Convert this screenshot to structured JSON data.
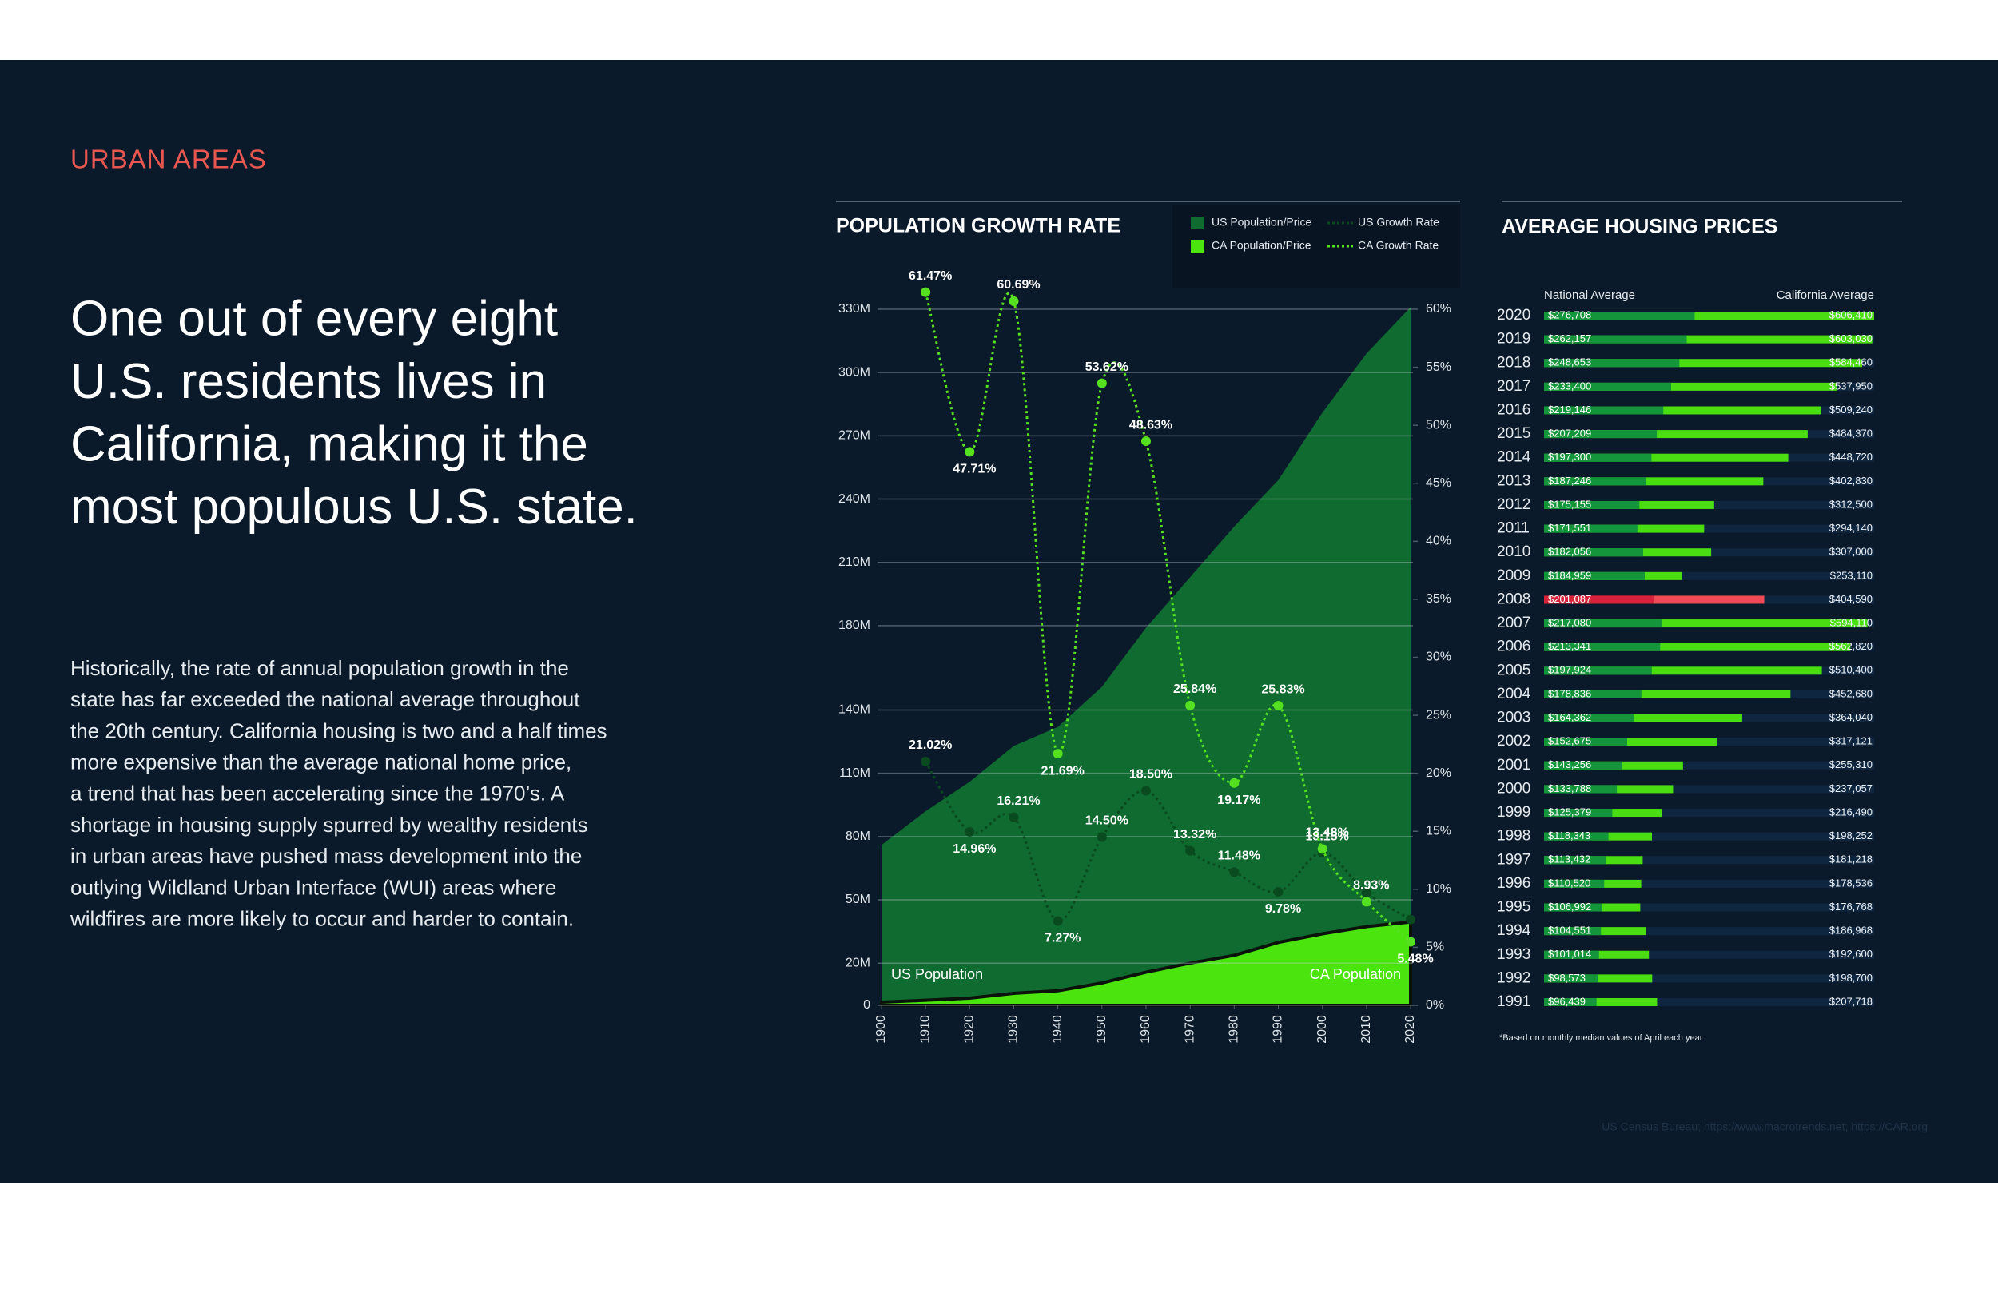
{
  "section_label": "URBAN AREAS",
  "headline": [
    "One out of every eight",
    "U.S. residents lives in",
    "California, making it the",
    "most populous U.S. state."
  ],
  "body": [
    "Historically, the rate of annual population growth in the",
    "state has far exceeded the national average throughout",
    "the 20th century. California housing is two and a half times",
    "more expensive than the average national home price,",
    "a trend that has been accelerating since the 1970’s. A",
    "shortage in housing supply spurred by wealthy residents",
    "in urban areas have pushed mass development into the",
    "outlying Wildland Urban Interface (WUI) areas where",
    "wildfires are more likely to occur and harder to contain."
  ],
  "source": "US Census Bureau; https://www.macrotrends.net; https://CAR.org",
  "chart_data": [
    {
      "type": "line",
      "title": "POPULATION GROWTH RATE",
      "x": [
        1900,
        1910,
        1920,
        1930,
        1940,
        1950,
        1960,
        1970,
        1980,
        1990,
        2000,
        2010,
        2020
      ],
      "xlim": [
        1900,
        2020
      ],
      "xticks": [
        1900,
        1910,
        1920,
        1930,
        1940,
        1950,
        1960,
        1970,
        1980,
        1990,
        2000,
        2010,
        2020
      ],
      "ylim": [
        0,
        330
      ],
      "yticks": [
        0,
        {
          "value": 20,
          "label": "20M"
        },
        {
          "value": 50,
          "label": "50M"
        },
        {
          "value": 80,
          "label": "80M"
        },
        {
          "value": 110,
          "label": "110M"
        },
        {
          "value": 140,
          "label": "140M"
        },
        {
          "value": 180,
          "label": "180M"
        },
        {
          "value": 210,
          "label": "210M"
        },
        {
          "value": 240,
          "label": "240M"
        },
        {
          "value": 270,
          "label": "270M"
        },
        {
          "value": 300,
          "label": "300M"
        },
        {
          "value": 330,
          "label": "330M"
        }
      ],
      "y2lim": [
        0,
        60
      ],
      "y2ticks": [
        {
          "value": 0,
          "label": "0%"
        },
        {
          "value": 5,
          "label": "5%"
        },
        {
          "value": 10,
          "label": "10%"
        },
        {
          "value": 15,
          "label": "15%"
        },
        {
          "value": 20,
          "label": "20%"
        },
        {
          "value": 25,
          "label": "25%"
        },
        {
          "value": 30,
          "label": "30%"
        },
        {
          "value": 35,
          "label": "35%"
        },
        {
          "value": 40,
          "label": "40%"
        },
        {
          "value": 45,
          "label": "45%"
        },
        {
          "value": 50,
          "label": "50%"
        },
        {
          "value": 55,
          "label": "55%"
        },
        {
          "value": 60,
          "label": "60%"
        }
      ],
      "grid": true,
      "legend": "top-right",
      "series": [
        {
          "name": "US Population/Price",
          "label": "US Population",
          "style": "area",
          "color": "#0f6b2f",
          "values": [
            76,
            92,
            106,
            123,
            132,
            151,
            179,
            203,
            227,
            249,
            281,
            309,
            331
          ]
        },
        {
          "name": "CA Population/Price",
          "label": "CA Population",
          "style": "area",
          "color": "#4be40f",
          "edge_color": "#0a120b",
          "values": [
            1.5,
            2.4,
            3.4,
            5.7,
            6.9,
            10.6,
            15.7,
            20.0,
            23.7,
            29.8,
            33.9,
            37.3,
            39.5
          ]
        },
        {
          "name": "US Growth Rate",
          "style": "dotted",
          "axis": "y2",
          "color": "#0a4a1f",
          "values": [
            null,
            21.02,
            14.96,
            16.21,
            7.27,
            14.5,
            18.5,
            13.32,
            11.48,
            9.78,
            13.15,
            9.7,
            7.4
          ],
          "value_labels": [
            null,
            "21.02%",
            "14.96%",
            "16.21%",
            "7.27%",
            "14.50%",
            "18.50%",
            "13.32%",
            "11.48%",
            "9.78%",
            "13.15%",
            null,
            null
          ]
        },
        {
          "name": "CA Growth Rate",
          "style": "dotted",
          "axis": "y2",
          "color": "#55e020",
          "values": [
            null,
            61.47,
            47.71,
            60.69,
            21.69,
            53.62,
            48.63,
            25.84,
            19.17,
            25.83,
            13.48,
            8.93,
            5.48
          ],
          "value_labels": [
            null,
            "61.47%",
            "47.71%",
            "60.69%",
            "21.69%",
            "53.62%",
            "48.63%",
            "25.84%",
            "19.17%",
            "25.83%",
            "13.48%",
            "8.93%",
            "5.48%"
          ]
        }
      ]
    },
    {
      "type": "bar",
      "orientation": "horizontal",
      "title": "AVERAGE HOUSING PRICES",
      "note": "*Based on monthly median values of April each year",
      "categories": [
        "2020",
        "2019",
        "2018",
        "2017",
        "2016",
        "2015",
        "2014",
        "2013",
        "2012",
        "2011",
        "2010",
        "2009",
        "2008",
        "2007",
        "2006",
        "2005",
        "2004",
        "2003",
        "2002",
        "2001",
        "2000",
        "1999",
        "1998",
        "1997",
        "1996",
        "1995",
        "1994",
        "1993",
        "1992",
        "1991"
      ],
      "highlight": "2008",
      "series": [
        {
          "name": "National Average",
          "color": "#14953b",
          "highlight_color": "#d8213a",
          "values": [
            276708,
            262157,
            248653,
            233400,
            219146,
            207209,
            197300,
            187246,
            175155,
            171551,
            182056,
            184959,
            201087,
            217080,
            213341,
            197924,
            178836,
            164362,
            152675,
            143256,
            133788,
            125379,
            118343,
            113432,
            110520,
            106992,
            104551,
            101014,
            98573,
            96439
          ],
          "value_labels": [
            "$276,708",
            "$262,157",
            "$248,653",
            "$233,400",
            "$219,146",
            "$207,209",
            "$197,300",
            "$187,246",
            "$175,155",
            "$171,551",
            "$182,056",
            "$184,959",
            "$201,087",
            "$217,080",
            "$213,341",
            "$197,924",
            "$178,836",
            "$164,362",
            "$152,675",
            "$143,256",
            "$133,788",
            "$125,379",
            "$118,343",
            "$113,432",
            "$110,520",
            "$106,992",
            "$104,551",
            "$101,014",
            "$98,573",
            "$96,439"
          ]
        },
        {
          "name": "California Average",
          "color": "#4ade12",
          "highlight_color": "#f04a55",
          "values": [
            606410,
            603030,
            584460,
            537950,
            509240,
            484370,
            448720,
            402830,
            312500,
            294140,
            307000,
            253110,
            404590,
            594110,
            562820,
            510400,
            452680,
            364040,
            317121,
            255310,
            237057,
            216490,
            198252,
            181218,
            178536,
            176768,
            186968,
            192600,
            198700,
            207718
          ],
          "value_labels": [
            "$606,410",
            "$603,030",
            "$584,460",
            "$537,950",
            "$509,240",
            "$484,370",
            "$448,720",
            "$402,830",
            "$312,500",
            "$294,140",
            "$307,000",
            "$253,110",
            "$404,590",
            "$594,110",
            "$562,820",
            "$510,400",
            "$452,680",
            "$364,040",
            "$317,121",
            "$255,310",
            "$237,057",
            "$216,490",
            "$198,252",
            "$181,218",
            "$178,536",
            "$176,768",
            "$186,968",
            "$192,600",
            "$198,700",
            "$207,718"
          ]
        }
      ]
    }
  ]
}
